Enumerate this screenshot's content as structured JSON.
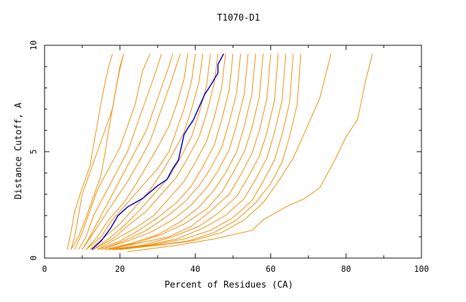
{
  "chart_data": {
    "type": "line",
    "title": "T1070-D1",
    "xlabel": "Percent of Residues (CA)",
    "ylabel": "Distance Cutoff, A",
    "xlim": [
      0,
      100
    ],
    "ylim": [
      0,
      10
    ],
    "x_ticks": [
      "0",
      "20",
      "40",
      "60",
      "80",
      "100"
    ],
    "y_ticks": [
      "0",
      "5",
      "10"
    ],
    "grid": false,
    "colors": {
      "highlight": "#0000cc",
      "others": "#f08a00",
      "axis": "#000000"
    },
    "highlight": {
      "x": [
        12.5,
        15,
        17.5,
        19.5,
        22,
        26,
        28,
        30,
        32.5,
        34,
        35.5,
        36,
        36.5,
        37,
        38,
        39.5,
        40.5,
        41.5,
        42.5,
        44,
        45,
        46,
        46,
        47.5
      ],
      "y": [
        0.4,
        0.8,
        1.4,
        2.0,
        2.4,
        2.8,
        3.1,
        3.4,
        3.7,
        4.2,
        4.6,
        5.0,
        5.4,
        5.8,
        6.1,
        6.5,
        6.9,
        7.3,
        7.7,
        8.1,
        8.4,
        8.7,
        9.1,
        9.6
      ]
    },
    "others": [
      {
        "x": [
          7,
          8,
          9,
          10,
          12,
          14,
          16,
          18,
          19,
          20,
          21
        ],
        "y": [
          0.4,
          1.0,
          2.0,
          3.0,
          4.0,
          5.0,
          6.0,
          7.0,
          8.0,
          9.0,
          9.6
        ]
      },
      {
        "x": [
          8,
          10,
          12,
          14,
          17,
          20,
          22,
          24,
          25,
          26,
          28
        ],
        "y": [
          0.4,
          1.2,
          2.2,
          3.2,
          4.2,
          5.2,
          6.2,
          7.2,
          8.0,
          8.8,
          9.6
        ]
      },
      {
        "x": [
          9,
          11,
          13,
          16,
          19,
          22,
          24,
          26,
          28,
          30,
          31
        ],
        "y": [
          0.4,
          1.0,
          2.0,
          3.0,
          4.0,
          5.0,
          6.0,
          7.0,
          8.0,
          9.0,
          9.6
        ]
      },
      {
        "x": [
          10,
          12,
          15,
          18,
          21,
          24,
          27,
          29,
          31,
          33,
          34
        ],
        "y": [
          0.4,
          1.0,
          2.0,
          3.0,
          4.0,
          5.0,
          6.0,
          7.0,
          8.0,
          9.0,
          9.6
        ]
      },
      {
        "x": [
          10,
          13,
          16,
          19,
          22,
          25,
          28,
          30,
          32,
          34,
          36
        ],
        "y": [
          0.4,
          1.2,
          2.0,
          2.8,
          3.6,
          4.5,
          5.5,
          6.5,
          7.5,
          8.5,
          9.6
        ]
      },
      {
        "x": [
          11,
          14,
          17,
          21,
          24,
          27,
          30,
          33,
          35,
          37,
          38
        ],
        "y": [
          0.4,
          1.0,
          1.8,
          2.6,
          3.4,
          4.3,
          5.2,
          6.2,
          7.2,
          8.4,
          9.6
        ]
      },
      {
        "x": [
          11,
          15,
          18,
          22,
          26,
          30,
          33,
          35,
          37,
          39,
          40
        ],
        "y": [
          0.4,
          1.0,
          1.8,
          2.6,
          3.4,
          4.2,
          5.0,
          6.0,
          7.0,
          8.3,
          9.6
        ]
      },
      {
        "x": [
          12,
          16,
          20,
          24,
          28,
          31,
          34,
          37,
          39,
          41,
          42
        ],
        "y": [
          0.4,
          1.0,
          1.6,
          2.4,
          3.2,
          4.0,
          4.9,
          5.9,
          7.0,
          8.3,
          9.6
        ]
      },
      {
        "x": [
          13,
          17,
          21,
          25,
          29,
          33,
          36,
          39,
          41,
          43,
          44
        ],
        "y": [
          0.4,
          0.9,
          1.5,
          2.2,
          3.0,
          3.8,
          4.7,
          5.7,
          6.8,
          8.1,
          9.6
        ]
      },
      {
        "x": [
          13,
          18,
          22,
          27,
          31,
          35,
          38,
          41,
          43,
          45,
          46
        ],
        "y": [
          0.4,
          0.9,
          1.5,
          2.2,
          3.0,
          3.8,
          4.7,
          5.7,
          6.8,
          8.2,
          9.6
        ]
      },
      {
        "x": [
          14,
          19,
          24,
          29,
          33,
          37,
          40,
          43,
          45,
          47,
          48
        ],
        "y": [
          0.4,
          0.9,
          1.4,
          2.0,
          2.8,
          3.6,
          4.5,
          5.5,
          6.6,
          8.0,
          9.6
        ]
      },
      {
        "x": [
          14,
          20,
          25,
          30,
          35,
          39,
          42,
          45,
          47,
          49,
          50
        ],
        "y": [
          0.4,
          0.8,
          1.3,
          1.9,
          2.6,
          3.4,
          4.3,
          5.3,
          6.5,
          7.9,
          9.6
        ]
      },
      {
        "x": [
          15,
          21,
          27,
          32,
          37,
          41,
          44,
          47,
          49,
          51,
          52
        ],
        "y": [
          0.4,
          0.8,
          1.3,
          1.9,
          2.6,
          3.4,
          4.2,
          5.2,
          6.4,
          7.8,
          9.6
        ]
      },
      {
        "x": [
          15,
          22,
          28,
          34,
          39,
          43,
          46,
          49,
          51,
          53,
          54
        ],
        "y": [
          0.4,
          0.8,
          1.2,
          1.8,
          2.5,
          3.3,
          4.1,
          5.1,
          6.3,
          7.7,
          9.6
        ]
      },
      {
        "x": [
          16,
          23,
          30,
          36,
          41,
          45,
          48,
          51,
          53,
          55,
          56
        ],
        "y": [
          0.4,
          0.7,
          1.1,
          1.7,
          2.4,
          3.2,
          4.0,
          5.0,
          6.2,
          7.7,
          9.6
        ]
      },
      {
        "x": [
          16,
          24,
          31,
          37,
          43,
          47,
          50,
          53,
          55,
          57,
          58
        ],
        "y": [
          0.4,
          0.7,
          1.1,
          1.6,
          2.3,
          3.1,
          4.0,
          5.0,
          6.1,
          7.6,
          9.6
        ]
      },
      {
        "x": [
          17,
          25,
          33,
          39,
          44,
          49,
          52,
          55,
          57,
          59,
          60
        ],
        "y": [
          0.4,
          0.7,
          1.0,
          1.5,
          2.2,
          3.0,
          3.9,
          4.9,
          6.0,
          7.5,
          9.6
        ]
      },
      {
        "x": [
          17,
          26,
          34,
          41,
          46,
          51,
          54,
          57,
          59,
          61,
          62
        ],
        "y": [
          0.4,
          0.6,
          1.0,
          1.5,
          2.1,
          2.9,
          3.8,
          4.8,
          5.9,
          7.4,
          9.6
        ]
      },
      {
        "x": [
          18,
          27,
          35,
          42,
          48,
          53,
          56,
          59,
          61,
          63,
          64
        ],
        "y": [
          0.4,
          0.6,
          0.9,
          1.4,
          2.0,
          2.8,
          3.7,
          4.7,
          5.9,
          7.4,
          9.6
        ]
      },
      {
        "x": [
          18,
          28,
          37,
          44,
          50,
          55,
          58,
          61,
          63,
          65,
          66
        ],
        "y": [
          0.4,
          0.6,
          0.9,
          1.3,
          1.9,
          2.7,
          3.6,
          4.6,
          5.8,
          7.3,
          9.6
        ]
      },
      {
        "x": [
          19,
          29,
          38,
          45,
          51,
          56,
          60,
          63,
          65,
          67,
          68
        ],
        "y": [
          0.4,
          0.6,
          0.8,
          1.2,
          1.8,
          2.6,
          3.5,
          4.5,
          5.7,
          7.2,
          9.6
        ]
      },
      {
        "x": [
          20,
          30,
          39,
          47,
          53,
          58,
          62,
          66,
          69,
          73,
          76
        ],
        "y": [
          0.4,
          0.6,
          0.8,
          1.2,
          1.8,
          2.6,
          3.6,
          4.7,
          5.9,
          7.5,
          9.6
        ]
      },
      {
        "x": [
          6,
          7,
          8,
          10,
          12,
          13,
          14,
          15,
          16,
          17,
          18
        ],
        "y": [
          0.4,
          1.2,
          2.2,
          3.3,
          4.3,
          5.3,
          6.3,
          7.3,
          8.2,
          9.0,
          9.6
        ]
      },
      {
        "x": [
          7,
          9,
          11,
          13,
          15,
          16,
          17,
          18,
          19,
          20,
          21
        ],
        "y": [
          0.4,
          1.0,
          1.9,
          2.9,
          3.9,
          4.9,
          6.0,
          7.0,
          8.0,
          8.9,
          9.6
        ]
      },
      {
        "x": [
          22,
          35,
          45,
          55,
          58,
          64,
          69,
          73,
          77,
          80,
          83,
          84,
          85,
          87
        ],
        "y": [
          0.3,
          0.6,
          0.9,
          1.3,
          1.8,
          2.4,
          2.8,
          3.3,
          4.6,
          5.7,
          6.5,
          7.3,
          8.2,
          9.6
        ]
      }
    ]
  }
}
